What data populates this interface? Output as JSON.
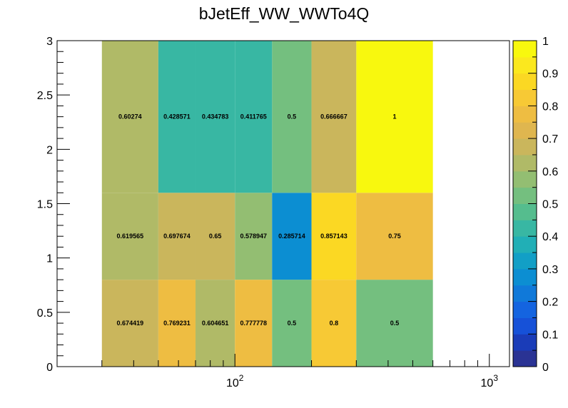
{
  "chart_data": {
    "type": "heatmap",
    "title": "bJetEff_WW_WWTo4Q",
    "xlabel": "",
    "ylabel": "",
    "x_scale": "log",
    "xlim": [
      20,
      1200
    ],
    "ylim": [
      0,
      3
    ],
    "x_edges": [
      30,
      50,
      70,
      100,
      140,
      200,
      300,
      600
    ],
    "y_edges": [
      0,
      0.8,
      1.6,
      3.0
    ],
    "x_tick_labels": [
      {
        "value": 100,
        "base": "10",
        "exp": "2"
      },
      {
        "value": 1000,
        "base": "10",
        "exp": "3"
      }
    ],
    "y_ticks": [
      0,
      0.5,
      1,
      1.5,
      2,
      2.5,
      3
    ],
    "y_tick_labels": [
      "0",
      "0.5",
      "1",
      "1.5",
      "2",
      "2.5",
      "3"
    ],
    "zlim": [
      0,
      1
    ],
    "z_ticks": [
      0,
      0.1,
      0.2,
      0.3,
      0.4,
      0.5,
      0.6,
      0.7,
      0.8,
      0.9,
      1
    ],
    "z_tick_labels": [
      "0",
      "0.1",
      "0.2",
      "0.3",
      "0.4",
      "0.5",
      "0.6",
      "0.7",
      "0.8",
      "0.9",
      "1"
    ],
    "palette": [
      "#2a3394",
      "#1a3cb8",
      "#1651d8",
      "#1464e0",
      "#1079d9",
      "#0c8ed2",
      "#129fc6",
      "#21afb6",
      "#38b7a3",
      "#55bd8e",
      "#74bf7f",
      "#93be72",
      "#b0ba67",
      "#cab65c",
      "#dfb64f",
      "#eebd42",
      "#f7c935",
      "#fbd823",
      "#fbe81e",
      "#f8f80e"
    ],
    "cells": [
      {
        "x0": 30,
        "x1": 50,
        "y0": 0,
        "y1": 0.8,
        "value": 0.674419,
        "label": "0.674419"
      },
      {
        "x0": 50,
        "x1": 70,
        "y0": 0,
        "y1": 0.8,
        "value": 0.769231,
        "label": "0.769231"
      },
      {
        "x0": 70,
        "x1": 100,
        "y0": 0,
        "y1": 0.8,
        "value": 0.604651,
        "label": "0.604651"
      },
      {
        "x0": 100,
        "x1": 140,
        "y0": 0,
        "y1": 0.8,
        "value": 0.777778,
        "label": "0.777778"
      },
      {
        "x0": 140,
        "x1": 200,
        "y0": 0,
        "y1": 0.8,
        "value": 0.5,
        "label": "0.5"
      },
      {
        "x0": 200,
        "x1": 300,
        "y0": 0,
        "y1": 0.8,
        "value": 0.8,
        "label": "0.8"
      },
      {
        "x0": 300,
        "x1": 600,
        "y0": 0,
        "y1": 0.8,
        "value": 0.5,
        "label": "0.5"
      },
      {
        "x0": 30,
        "x1": 50,
        "y0": 0.8,
        "y1": 1.6,
        "value": 0.619565,
        "label": "0.619565"
      },
      {
        "x0": 50,
        "x1": 70,
        "y0": 0.8,
        "y1": 1.6,
        "value": 0.697674,
        "label": "0.697674"
      },
      {
        "x0": 70,
        "x1": 100,
        "y0": 0.8,
        "y1": 1.6,
        "value": 0.65,
        "label": "0.65"
      },
      {
        "x0": 100,
        "x1": 140,
        "y0": 0.8,
        "y1": 1.6,
        "value": 0.578947,
        "label": "0.578947"
      },
      {
        "x0": 140,
        "x1": 200,
        "y0": 0.8,
        "y1": 1.6,
        "value": 0.285714,
        "label": "0.285714"
      },
      {
        "x0": 200,
        "x1": 300,
        "y0": 0.8,
        "y1": 1.6,
        "value": 0.857143,
        "label": "0.857143"
      },
      {
        "x0": 300,
        "x1": 600,
        "y0": 0.8,
        "y1": 1.6,
        "value": 0.75,
        "label": "0.75"
      },
      {
        "x0": 30,
        "x1": 50,
        "y0": 1.6,
        "y1": 3.0,
        "value": 0.60274,
        "label": "0.60274"
      },
      {
        "x0": 50,
        "x1": 70,
        "y0": 1.6,
        "y1": 3.0,
        "value": 0.428571,
        "label": "0.428571"
      },
      {
        "x0": 70,
        "x1": 100,
        "y0": 1.6,
        "y1": 3.0,
        "value": 0.434783,
        "label": "0.434783"
      },
      {
        "x0": 100,
        "x1": 140,
        "y0": 1.6,
        "y1": 3.0,
        "value": 0.411765,
        "label": "0.411765"
      },
      {
        "x0": 140,
        "x1": 200,
        "y0": 1.6,
        "y1": 3.0,
        "value": 0.5,
        "label": "0.5"
      },
      {
        "x0": 200,
        "x1": 300,
        "y0": 1.6,
        "y1": 3.0,
        "value": 0.666667,
        "label": "0.666667"
      },
      {
        "x0": 300,
        "x1": 600,
        "y0": 1.6,
        "y1": 3.0,
        "value": 1,
        "label": "1"
      }
    ]
  }
}
